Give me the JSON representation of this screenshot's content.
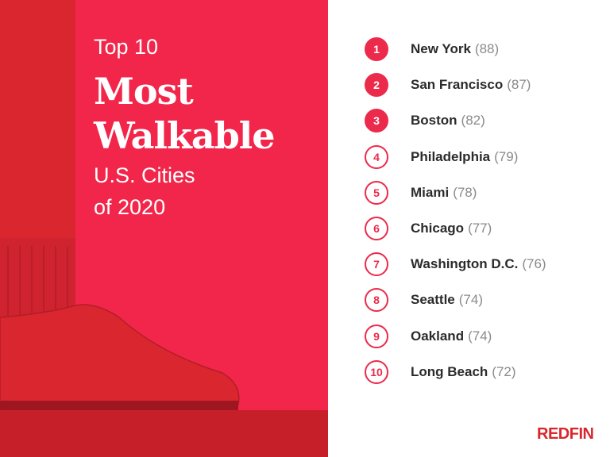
{
  "header": {
    "line1": "Top 10",
    "line2": "Most",
    "line3": "Walkable",
    "line4": "U.S. Cities",
    "line5": "of 2020"
  },
  "list": [
    {
      "rank": 1,
      "city": "New York",
      "score": "(88)"
    },
    {
      "rank": 2,
      "city": "San Francisco",
      "score": "(87)"
    },
    {
      "rank": 3,
      "city": "Boston",
      "score": "(82)"
    },
    {
      "rank": 4,
      "city": "Philadelphia",
      "score": "(79)"
    },
    {
      "rank": 5,
      "city": "Miami",
      "score": "(78)"
    },
    {
      "rank": 6,
      "city": "Chicago",
      "score": "(77)"
    },
    {
      "rank": 7,
      "city": "Washington D.C.",
      "score": "(76)"
    },
    {
      "rank": 8,
      "city": "Seattle",
      "score": "(74)"
    },
    {
      "rank": 9,
      "city": "Oakland",
      "score": "(74)"
    },
    {
      "rank": 10,
      "city": "Long Beach",
      "score": "(72)"
    }
  ],
  "logo": "REDFIN"
}
